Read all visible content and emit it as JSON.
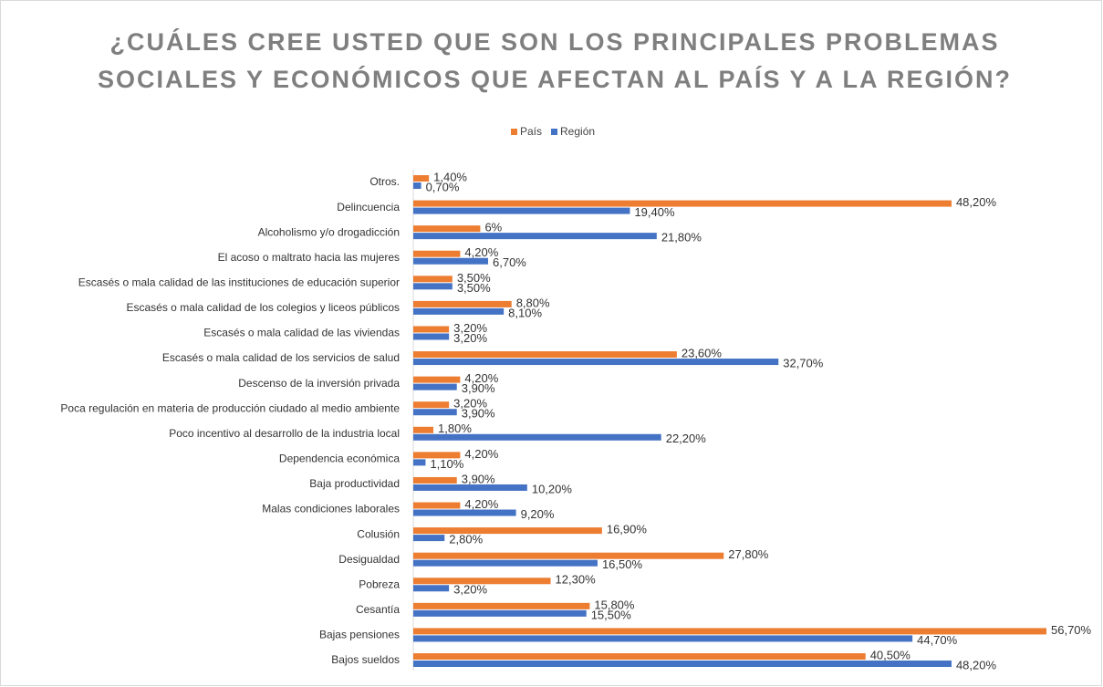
{
  "chart_data": {
    "type": "bar",
    "orientation": "horizontal",
    "title": [
      "¿CUÁLES CREE USTED QUE SON LOS PRINCIPALES PROBLEMAS",
      "SOCIALES Y ECONÓMICOS QUE AFECTAN AL PAÍS Y A LA REGIÓN?"
    ],
    "categories": [
      "Otros.",
      "Delincuencia",
      "Alcoholismo y/o drogadicción",
      "El acoso o maltrato hacia las mujeres",
      "Escasés o mala calidad de las instituciones de educación superior",
      "Escasés o mala calidad de los colegios y liceos públicos",
      "Escasés o mala calidad de las viviendas",
      "Escasés o mala calidad de los servicios de salud",
      "Descenso de la inversión privada",
      "Poca regulación en materia  de producción ciudado al medio ambiente",
      "Poco incentivo al desarrollo de la industria local",
      "Dependencia económica",
      "Baja productividad",
      "Malas condiciones laborales",
      "Colusión",
      "Desigualdad",
      "Pobreza",
      "Cesantía",
      "Bajas pensiones",
      "Bajos sueldos"
    ],
    "series": [
      {
        "name": "País",
        "color": "#ED7D31",
        "values": [
          1.4,
          48.2,
          6,
          4.2,
          3.5,
          8.8,
          3.2,
          23.6,
          4.2,
          3.2,
          1.8,
          4.2,
          3.9,
          4.2,
          16.9,
          27.8,
          12.3,
          15.8,
          56.7,
          40.5
        ],
        "value_labels": [
          "1,40%",
          "48,20%",
          "6%",
          "4,20%",
          "3,50%",
          "8,80%",
          "3,20%",
          "23,60%",
          "4,20%",
          "3,20%",
          "1,80%",
          "4,20%",
          "3,90%",
          "4,20%",
          "16,90%",
          "27,80%",
          "12,30%",
          "15,80%",
          "56,70%",
          "40,50%"
        ]
      },
      {
        "name": "Región",
        "color": "#4472C4",
        "values": [
          0.7,
          19.4,
          21.8,
          6.7,
          3.5,
          8.1,
          3.2,
          32.7,
          3.9,
          3.9,
          22.2,
          1.1,
          10.2,
          9.2,
          2.8,
          16.5,
          3.2,
          15.5,
          44.7,
          48.2
        ],
        "value_labels": [
          "0,70%",
          "19,40%",
          "21,80%",
          "6,70%",
          "3,50%",
          "8,10%",
          "3,20%",
          "32,70%",
          "3,90%",
          "3,90%",
          "22,20%",
          "1,10%",
          "10,20%",
          "9,20%",
          "2,80%",
          "16,50%",
          "3,20%",
          "15,50%",
          "44,70%",
          "48,20%"
        ]
      }
    ],
    "legend": "top"
  }
}
